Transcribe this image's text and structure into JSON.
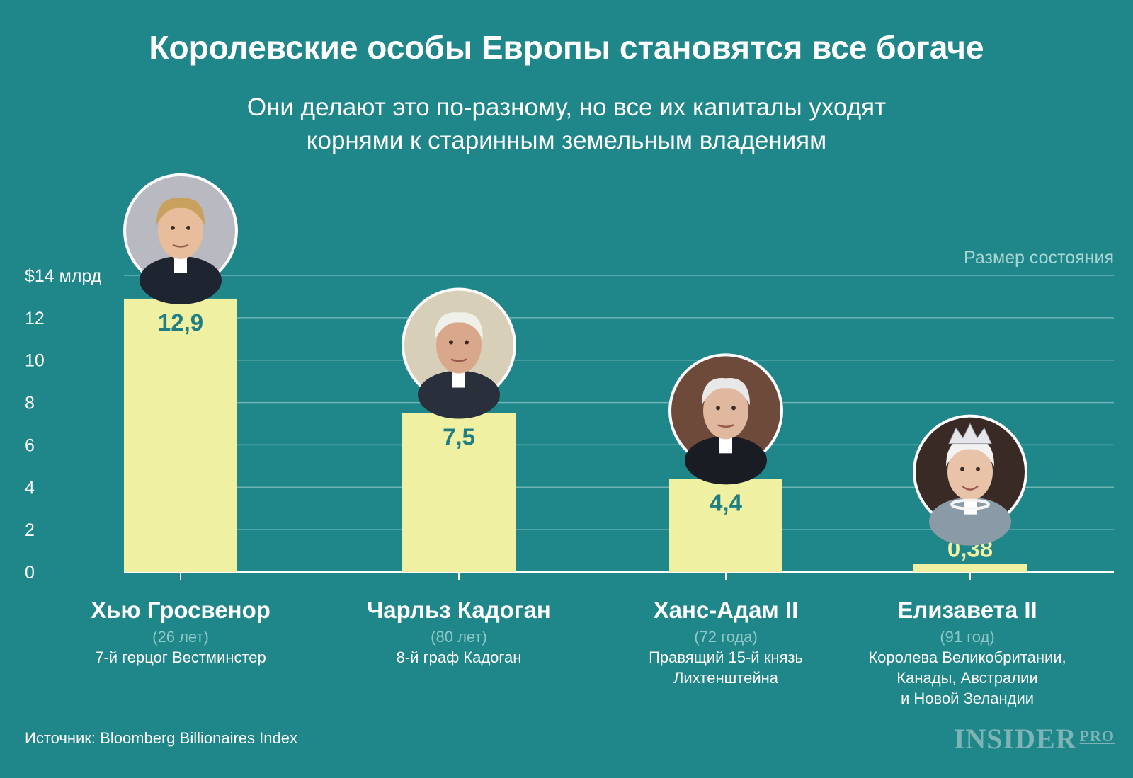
{
  "title": "Королевские особы Европы становятся все богаче",
  "subtitle_line1": "Они делают это по-разному, но все их капиталы уходят",
  "subtitle_line2": "корнями к старинным земельным владениям",
  "wealth_label": "Размер состояния",
  "source": "Источник: Bloomberg Billionaires Index",
  "logo_main": "INSIDER",
  "logo_sub": "PRO",
  "colors": {
    "background": "#1f868a",
    "bar": "#f0f0a2",
    "value_text": "#1f7e82",
    "grid": "#6fb3b3"
  },
  "people": [
    {
      "name": "Хью Гросвенор",
      "age": "(26 лет)",
      "title": [
        "7-й герцог Вестминстер"
      ],
      "photo_icon": "portrait-young-man-icon"
    },
    {
      "name": "Чарльз Кадоган",
      "age": "(80 лет)",
      "title": [
        "8-й граф Кадоган"
      ],
      "photo_icon": "portrait-elderly-man-icon"
    },
    {
      "name": "Ханс-Адам II",
      "age": "(72 года)",
      "title": [
        "Правящий 15-й князь",
        "Лихтенштейна"
      ],
      "photo_icon": "portrait-grey-haired-man-icon"
    },
    {
      "name": "Елизавета II",
      "age": "(91 год)",
      "title": [
        "Королева Великобритании,",
        "Канады, Австралии",
        "и Новой Зеландии"
      ],
      "photo_icon": "portrait-queen-tiara-icon"
    }
  ],
  "chart_data": {
    "type": "bar",
    "categories": [
      "Хью Гросвенор",
      "Чарльз Кадоган",
      "Ханс-Адам II",
      "Елизавета II"
    ],
    "values": [
      12.9,
      7.5,
      4.4,
      0.38
    ],
    "value_labels": [
      "12,9",
      "7,5",
      "4,4",
      "0,38"
    ],
    "ylim": [
      0,
      14
    ],
    "yticks": [
      0,
      2,
      4,
      6,
      8,
      10,
      12,
      14
    ],
    "ytick_labels": [
      "0",
      "2",
      "4",
      "6",
      "8",
      "10",
      "12",
      "$14 млрд"
    ],
    "ylabel": "Размер состояния",
    "grid": true
  }
}
